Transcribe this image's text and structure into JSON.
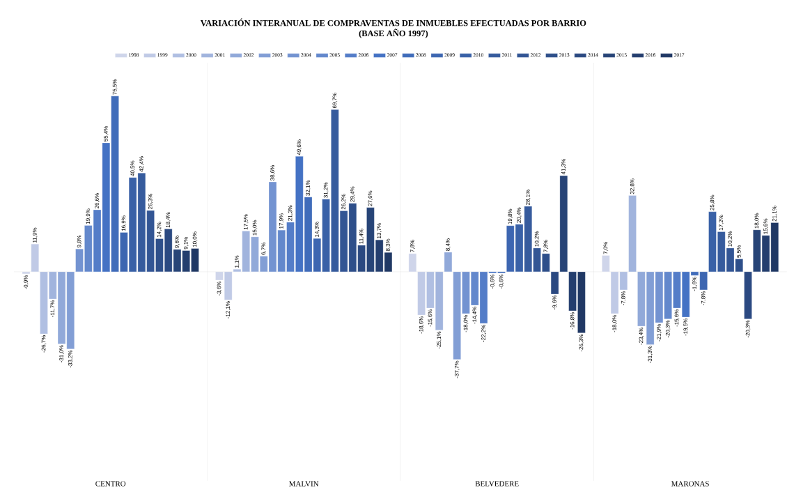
{
  "chart_data": {
    "type": "bar",
    "title": "VARIACIÓN INTERANUAL DE COMPRAVENTAS DE INMUEBLES EFECTUADAS POR BARRIO",
    "subtitle": "(BASE AÑO 1997)",
    "categories": [
      "CENTRO",
      "MALVIN",
      "BELVEDERE",
      "MARONAS"
    ],
    "legend": "top",
    "series": [
      {
        "name": "1998",
        "color": "#cfd5ea",
        "values": [
          -0.9,
          -3.6,
          7.8,
          7.0
        ],
        "value_labels": [
          "-0,9%",
          "-3,6%",
          "7,8%",
          "7,0%"
        ]
      },
      {
        "name": "1999",
        "color": "#c0cae6",
        "values": [
          11.9,
          -12.1,
          -18.6,
          -18.0
        ],
        "value_labels": [
          "11,9%",
          "-12,1%",
          "-18,6%",
          "-18,0%"
        ]
      },
      {
        "name": "2000",
        "color": "#b0bfe2",
        "values": [
          -26.7,
          1.1,
          -15.6,
          -7.8
        ],
        "value_labels": [
          "-26,7%",
          "1,1%",
          "-15,6%",
          "-7,8%"
        ]
      },
      {
        "name": "2001",
        "color": "#a1b4dd",
        "values": [
          -11.7,
          17.5,
          -25.1,
          32.8
        ],
        "value_labels": [
          "-11,7%",
          "17,5%",
          "-25,1%",
          "32,8%"
        ]
      },
      {
        "name": "2002",
        "color": "#91a9d9",
        "values": [
          -31.0,
          15.0,
          8.4,
          -23.4
        ],
        "value_labels": [
          "-31,0%",
          "15,0%",
          "8,4%",
          "-23,4%"
        ]
      },
      {
        "name": "2003",
        "color": "#829ed5",
        "values": [
          -33.2,
          6.7,
          -37.7,
          -31.3
        ],
        "value_labels": [
          "-33,2%",
          "6,7%",
          "-37,7%",
          "-31,3%"
        ]
      },
      {
        "name": "2004",
        "color": "#7393d1",
        "values": [
          9.8,
          38.6,
          -18.0,
          -21.9
        ],
        "value_labels": [
          "9,8%",
          "38,6%",
          "-18,0%",
          "-21,9%"
        ]
      },
      {
        "name": "2005",
        "color": "#6388cc",
        "values": [
          19.9,
          17.9,
          -14.4,
          -20.3
        ],
        "value_labels": [
          "19,9%",
          "17,9%",
          "-14,4%",
          "-20,3%"
        ]
      },
      {
        "name": "2006",
        "color": "#547dc8",
        "values": [
          26.6,
          21.3,
          -22.2,
          -15.6
        ],
        "value_labels": [
          "26,6%",
          "21,3%",
          "-22,2%",
          "-15,6%"
        ]
      },
      {
        "name": "2007",
        "color": "#4472c4",
        "values": [
          55.4,
          49.6,
          -0.6,
          -19.5
        ],
        "value_labels": [
          "55,4%",
          "49,6%",
          "-0,6%",
          "-19,5%"
        ]
      },
      {
        "name": "2008",
        "color": "#406cba",
        "values": [
          75.5,
          32.1,
          -0.6,
          -1.6
        ],
        "value_labels": [
          "75,5%",
          "32,1%",
          "-0,6%",
          "-1,6%"
        ]
      },
      {
        "name": "2009",
        "color": "#3d66b1",
        "values": [
          16.9,
          14.3,
          19.8,
          -7.8
        ],
        "value_labels": [
          "16,9%",
          "14,3%",
          "19,8%",
          "-7,8%"
        ]
      },
      {
        "name": "2010",
        "color": "#3961a7",
        "values": [
          40.5,
          31.2,
          20.4,
          25.8
        ],
        "value_labels": [
          "40,5%",
          "31,2%",
          "20,4%",
          "25,8%"
        ]
      },
      {
        "name": "2011",
        "color": "#365b9d",
        "values": [
          42.4,
          69.7,
          28.1,
          17.2
        ],
        "value_labels": [
          "42,4%",
          "69,7%",
          "28,1%",
          "17,2%"
        ]
      },
      {
        "name": "2012",
        "color": "#325594",
        "values": [
          26.3,
          26.2,
          10.2,
          10.2
        ],
        "value_labels": [
          "26,3%",
          "26,2%",
          "10,2%",
          "10,2%"
        ]
      },
      {
        "name": "2013",
        "color": "#2e4f8a",
        "values": [
          14.2,
          29.4,
          7.8,
          5.5
        ],
        "value_labels": [
          "14,2%",
          "29,4%",
          "7,8%",
          "5,5%"
        ]
      },
      {
        "name": "2014",
        "color": "#2b4981",
        "values": [
          18.4,
          11.4,
          -9.6,
          -20.3
        ],
        "value_labels": [
          "18,4%",
          "11,4%",
          "-9,6%",
          "-20,3%"
        ]
      },
      {
        "name": "2015",
        "color": "#274477",
        "values": [
          9.6,
          27.6,
          41.3,
          18.0
        ],
        "value_labels": [
          "9,6%",
          "27,6%",
          "41,3%",
          "18,0%"
        ]
      },
      {
        "name": "2016",
        "color": "#243e6e",
        "values": [
          9.1,
          13.7,
          -16.8,
          15.6
        ],
        "value_labels": [
          "9,1%",
          "13,7%",
          "-16,8%",
          "15,6%"
        ]
      },
      {
        "name": "2017",
        "color": "#203864",
        "values": [
          10.0,
          8.3,
          -26.3,
          21.1
        ],
        "value_labels": [
          "10,0%",
          "8,3%",
          "-26,3%",
          "21,1%"
        ]
      }
    ]
  }
}
